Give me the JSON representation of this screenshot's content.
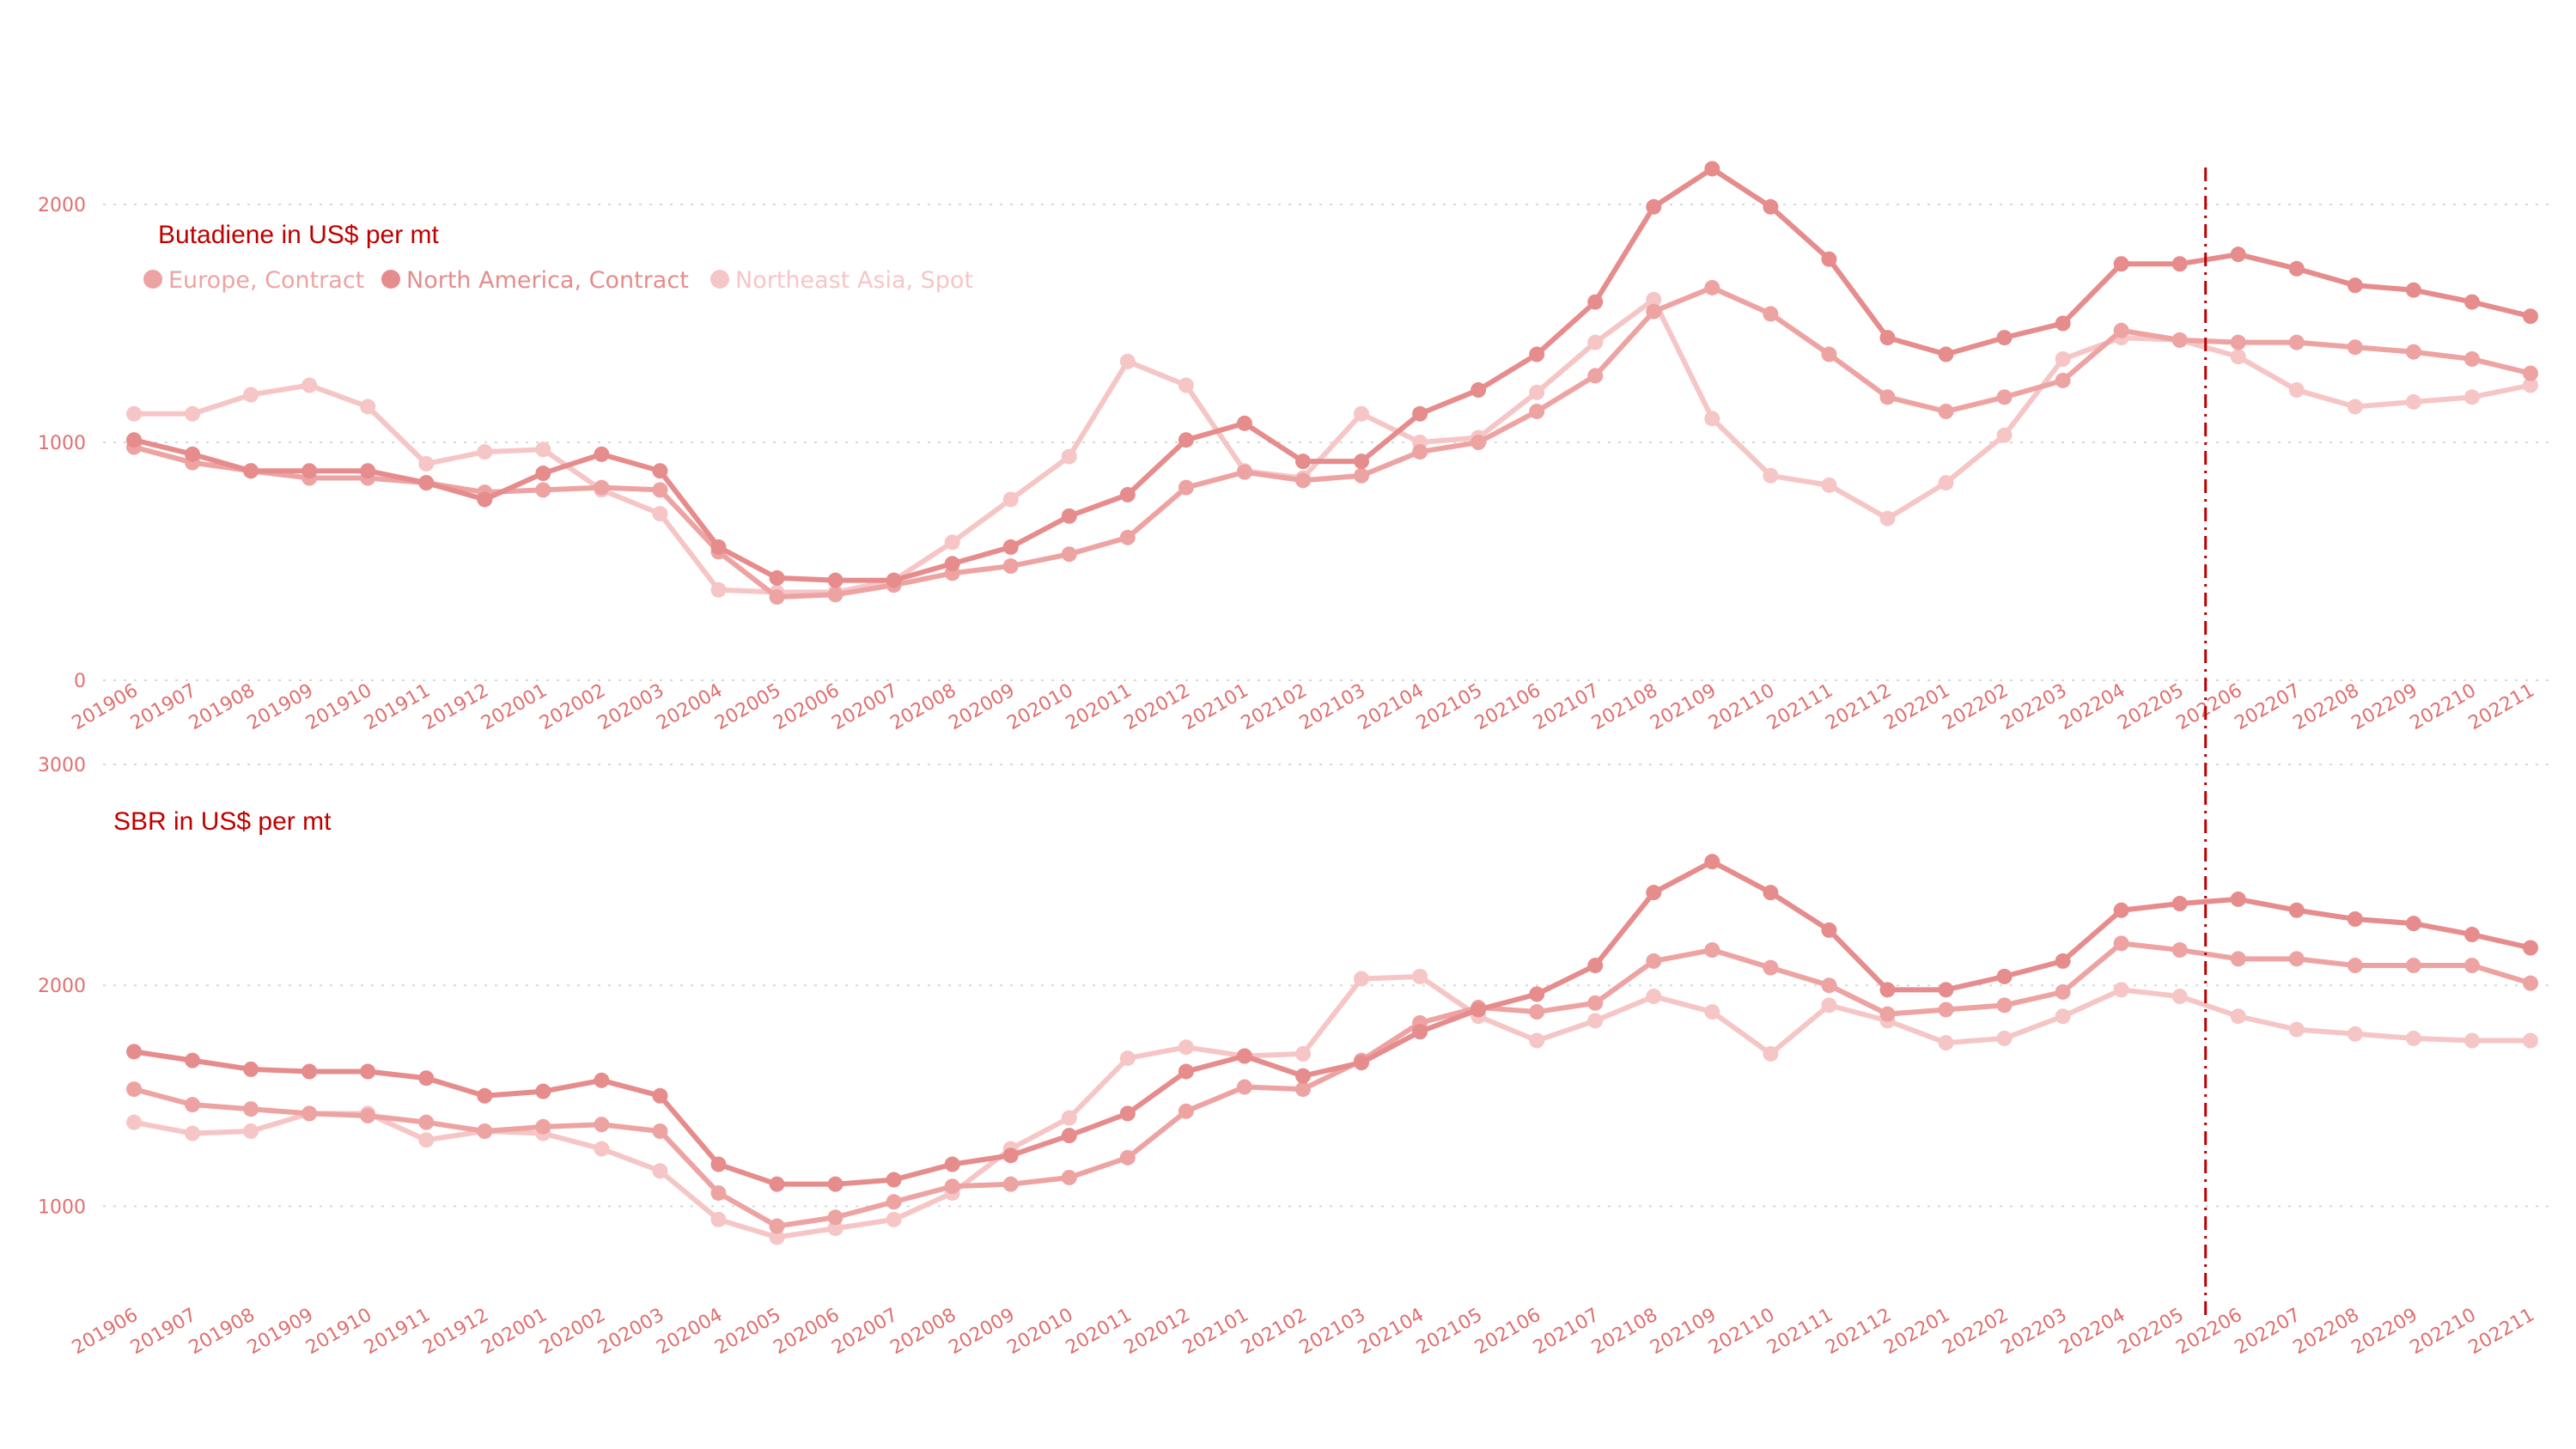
{
  "chart_data": [
    {
      "type": "line",
      "title": "Butadiene  in US$ per mt",
      "yticks": [
        0,
        1000,
        2000
      ],
      "ylim": [
        0,
        2000
      ],
      "legend_position": "top-left",
      "marker": "dashed-vertical-line-at-202205",
      "x": [
        "201906",
        "201907",
        "201908",
        "201909",
        "201910",
        "201911",
        "201912",
        "202001",
        "202002",
        "202003",
        "202004",
        "202005",
        "202006",
        "202007",
        "202008",
        "202009",
        "202010",
        "202011",
        "202012",
        "202101",
        "202102",
        "202103",
        "202104",
        "202105",
        "202106",
        "202107",
        "202108",
        "202109",
        "202110",
        "202111",
        "202112",
        "202201",
        "202202",
        "202203",
        "202204",
        "202205",
        "202206",
        "202207",
        "202208",
        "202209",
        "202210",
        "202211"
      ],
      "series": [
        {
          "name": "Europe, Contract",
          "color": "#eea3a3",
          "values": [
            980,
            915,
            880,
            850,
            850,
            830,
            790,
            800,
            810,
            800,
            540,
            350,
            360,
            400,
            450,
            480,
            530,
            600,
            810,
            875,
            840,
            860,
            960,
            1000,
            1130,
            1280,
            1550,
            1650,
            1540,
            1370,
            1190,
            1130,
            1190,
            1260,
            1470,
            1430,
            1420,
            1420,
            1400,
            1380,
            1350,
            1290
          ]
        },
        {
          "name": "North America, Contract",
          "color": "#e68c8c",
          "values": [
            1010,
            950,
            880,
            880,
            880,
            830,
            760,
            870,
            950,
            880,
            560,
            430,
            420,
            420,
            490,
            560,
            690,
            780,
            1010,
            1080,
            920,
            920,
            1120,
            1220,
            1370,
            1590,
            1990,
            2150,
            1990,
            1770,
            1440,
            1370,
            1440,
            1500,
            1750,
            1750,
            1790,
            1730,
            1660,
            1640,
            1590,
            1530
          ]
        },
        {
          "name": "Northeast Asia, Spot",
          "color": "#f6c6c6",
          "values": [
            1120,
            1120,
            1200,
            1240,
            1150,
            910,
            960,
            970,
            800,
            700,
            380,
            370,
            370,
            420,
            580,
            760,
            940,
            1340,
            1240,
            880,
            850,
            1120,
            1000,
            1020,
            1210,
            1420,
            1600,
            1100,
            860,
            820,
            680,
            830,
            1030,
            1350,
            1440,
            1430,
            1360,
            1220,
            1150,
            1170,
            1190,
            1240
          ]
        }
      ]
    },
    {
      "type": "line",
      "title": "SBR in US$ per mt",
      "yticks": [
        1000,
        2000,
        3000
      ],
      "ylim": [
        500,
        3000
      ],
      "legend_position": "none",
      "marker": "dashed-vertical-line-at-202205",
      "x": [
        "201906",
        "201907",
        "201908",
        "201909",
        "201910",
        "201911",
        "201912",
        "202001",
        "202002",
        "202003",
        "202004",
        "202005",
        "202006",
        "202007",
        "202008",
        "202009",
        "202010",
        "202011",
        "202012",
        "202101",
        "202102",
        "202103",
        "202104",
        "202105",
        "202106",
        "202107",
        "202108",
        "202109",
        "202110",
        "202111",
        "202112",
        "202201",
        "202202",
        "202203",
        "202204",
        "202205",
        "202206",
        "202207",
        "202208",
        "202209",
        "202210",
        "202211"
      ],
      "series": [
        {
          "name": "Europe, Contract",
          "color": "#eea3a3",
          "values": [
            1530,
            1460,
            1440,
            1420,
            1410,
            1380,
            1340,
            1360,
            1370,
            1340,
            1060,
            910,
            950,
            1020,
            1090,
            1100,
            1130,
            1220,
            1430,
            1540,
            1530,
            1660,
            1830,
            1900,
            1880,
            1920,
            2110,
            2160,
            2080,
            2000,
            1870,
            1890,
            1910,
            1970,
            2190,
            2160,
            2120,
            2120,
            2090,
            2090,
            2090,
            2010
          ]
        },
        {
          "name": "North America, Contract",
          "color": "#e68c8c",
          "values": [
            1700,
            1660,
            1620,
            1610,
            1610,
            1580,
            1500,
            1520,
            1570,
            1500,
            1190,
            1100,
            1100,
            1120,
            1190,
            1230,
            1320,
            1420,
            1610,
            1680,
            1590,
            1650,
            1790,
            1890,
            1960,
            2090,
            2420,
            2560,
            2420,
            2250,
            1980,
            1980,
            2040,
            2110,
            2340,
            2370,
            2390,
            2340,
            2300,
            2280,
            2230,
            2170
          ]
        },
        {
          "name": "Northeast Asia, Spot",
          "color": "#f6c6c6",
          "values": [
            1380,
            1330,
            1340,
            1420,
            1420,
            1300,
            1340,
            1330,
            1260,
            1160,
            940,
            860,
            900,
            940,
            1060,
            1260,
            1400,
            1670,
            1720,
            1680,
            1690,
            2030,
            2040,
            1860,
            1750,
            1840,
            1950,
            1880,
            1690,
            1910,
            1840,
            1740,
            1760,
            1860,
            1980,
            1950,
            1860,
            1800,
            1780,
            1760,
            1750,
            1750
          ]
        }
      ]
    }
  ]
}
